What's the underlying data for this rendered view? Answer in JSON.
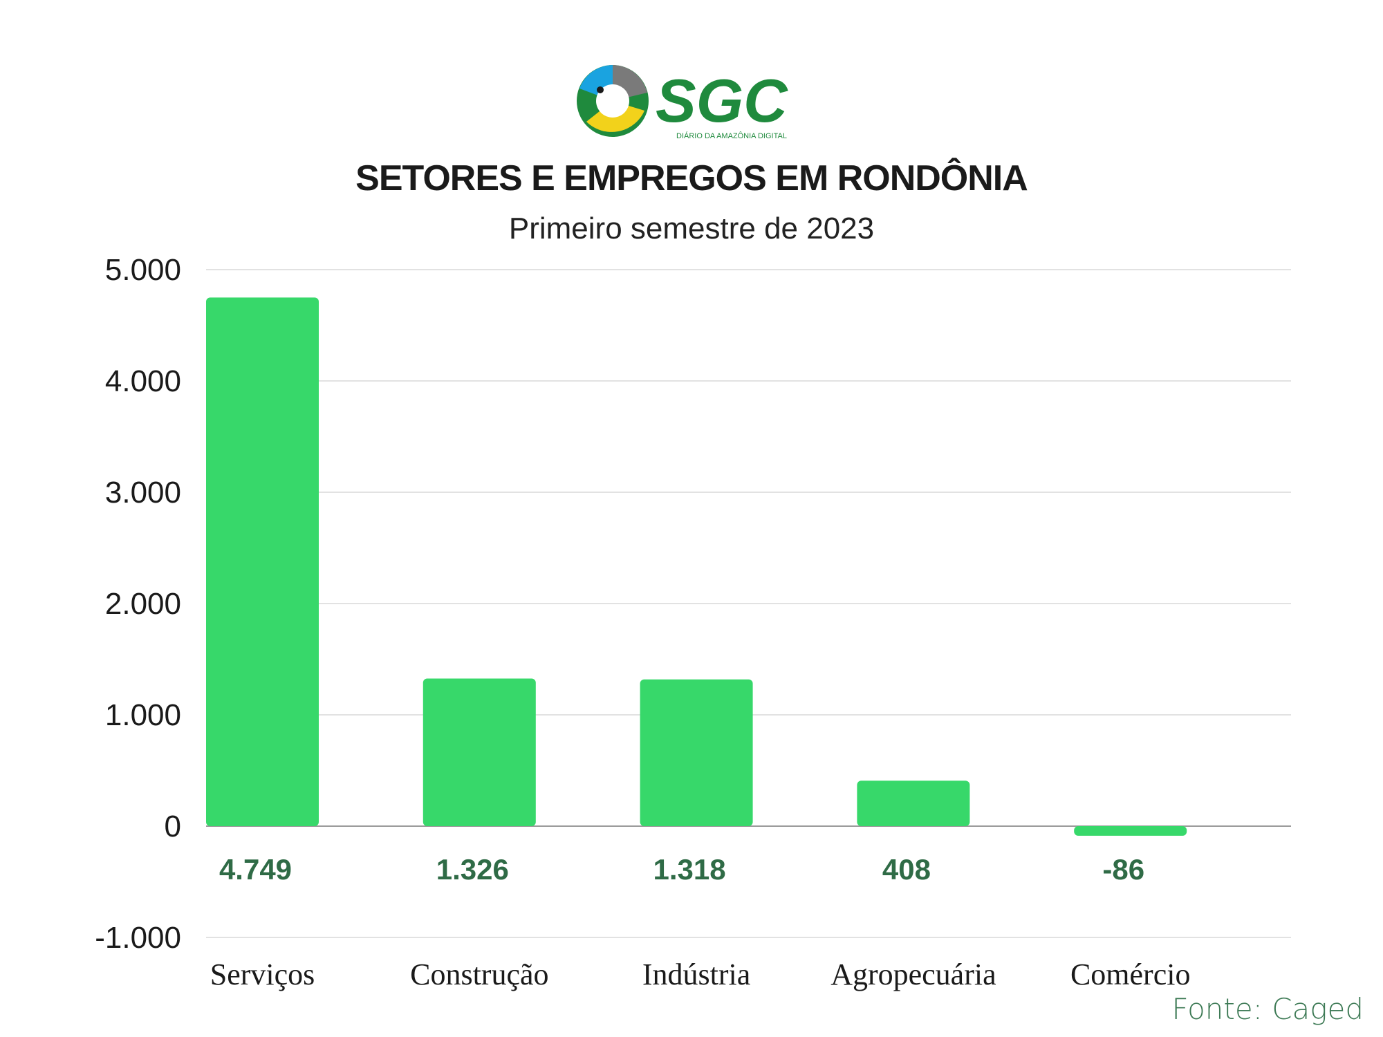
{
  "logo": {
    "wordmark": "SGC",
    "tagline": "DIÁRIO DA AMAZÔNIA DIGITAL",
    "colors": {
      "green": "#1f8a3d",
      "yellow": "#f2d21b",
      "blue": "#1aa3e0",
      "gray": "#7a7a7a"
    }
  },
  "chart_data": {
    "type": "bar",
    "title": "SETORES E EMPREGOS EM RONDÔNIA",
    "subtitle": "Primeiro semestre de 2023",
    "categories": [
      "Serviços",
      "Construção",
      "Indústria",
      "Agropecuária",
      "Comércio"
    ],
    "values": [
      4749,
      1326,
      1318,
      408,
      -86
    ],
    "value_labels": [
      "4.749",
      "1.326",
      "1.318",
      "408",
      "-86"
    ],
    "ylim": [
      -1000,
      5000
    ],
    "yticks": [
      -1000,
      0,
      1000,
      2000,
      3000,
      4000,
      5000
    ],
    "ytick_labels": [
      "-1.000",
      "0",
      "1.000",
      "2.000",
      "3.000",
      "4.000",
      "5.000"
    ],
    "grid": true,
    "legend": "none",
    "bar_color": "#37d86a",
    "label_color": "#2f6b46"
  },
  "source": "Fonte: Caged"
}
